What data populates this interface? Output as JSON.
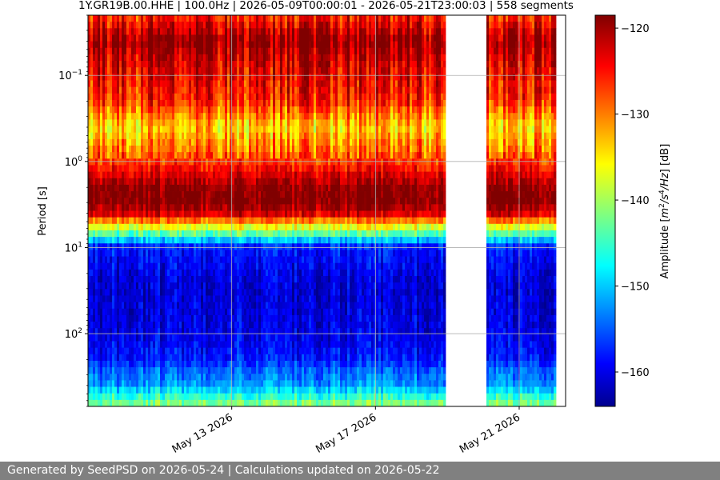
{
  "chart_data": {
    "type": "heatmap",
    "title": "1Y.GR19B.00.HHE | 100.0Hz | 2026-05-09T00:00:01 - 2026-05-21T23:00:03 | 558 segments",
    "ylabel": "Period [s]",
    "y_scale": "log",
    "y_inverted": true,
    "ylim": [
      0.02,
      700
    ],
    "y_ticks": [
      {
        "value": 0.1,
        "base": "10",
        "exp": "−1"
      },
      {
        "value": 1,
        "base": "10",
        "exp": "0"
      },
      {
        "value": 10,
        "base": "10",
        "exp": "1"
      },
      {
        "value": 100,
        "base": "10",
        "exp": "2"
      }
    ],
    "x_start": "2026-05-09T00:00:01",
    "x_end": "2026-05-21T23:00:03",
    "xlim": [
      "2026-05-09T00:00:00",
      "2026-05-22T07:00:00"
    ],
    "x_ticks": [
      {
        "value": "2026-05-13",
        "label": "May 13 2026"
      },
      {
        "value": "2026-05-17",
        "label": "May 17 2026"
      },
      {
        "value": "2026-05-21",
        "label": "May 21 2026"
      }
    ],
    "data_gap": [
      "2026-05-19T00:00:00",
      "2026-05-20T01:00:00"
    ],
    "grid": true,
    "colormap": "jet",
    "colorbar": {
      "label_prefix": "Amplitude [",
      "label_math": "m",
      "sup1": "2",
      "mid": "/s",
      "sup2": "4",
      "mid2": "/Hz",
      "label_suffix": "] [dB]",
      "range": [
        -164,
        -118.5
      ],
      "ticks": [
        -120,
        -130,
        -140,
        -150,
        -160
      ]
    },
    "amplitude_profile_db": [
      {
        "period": 0.02,
        "db": -126
      },
      {
        "period": 0.04,
        "db": -119
      },
      {
        "period": 0.08,
        "db": -123
      },
      {
        "period": 0.2,
        "db": -126
      },
      {
        "period": 0.4,
        "db": -134
      },
      {
        "period": 0.8,
        "db": -129
      },
      {
        "period": 2,
        "db": -119
      },
      {
        "period": 3,
        "db": -118
      },
      {
        "period": 4,
        "db": -122
      },
      {
        "period": 6,
        "db": -138
      },
      {
        "period": 10,
        "db": -158
      },
      {
        "period": 30,
        "db": -161
      },
      {
        "period": 100,
        "db": -160
      },
      {
        "period": 200,
        "db": -158
      },
      {
        "period": 250,
        "db": -155
      },
      {
        "period": 400,
        "db": -152
      },
      {
        "period": 700,
        "db": -140
      }
    ]
  },
  "footer": {
    "text": "Generated by SeedPSD on 2026-05-24 | Calculations updated on 2026-05-22"
  }
}
